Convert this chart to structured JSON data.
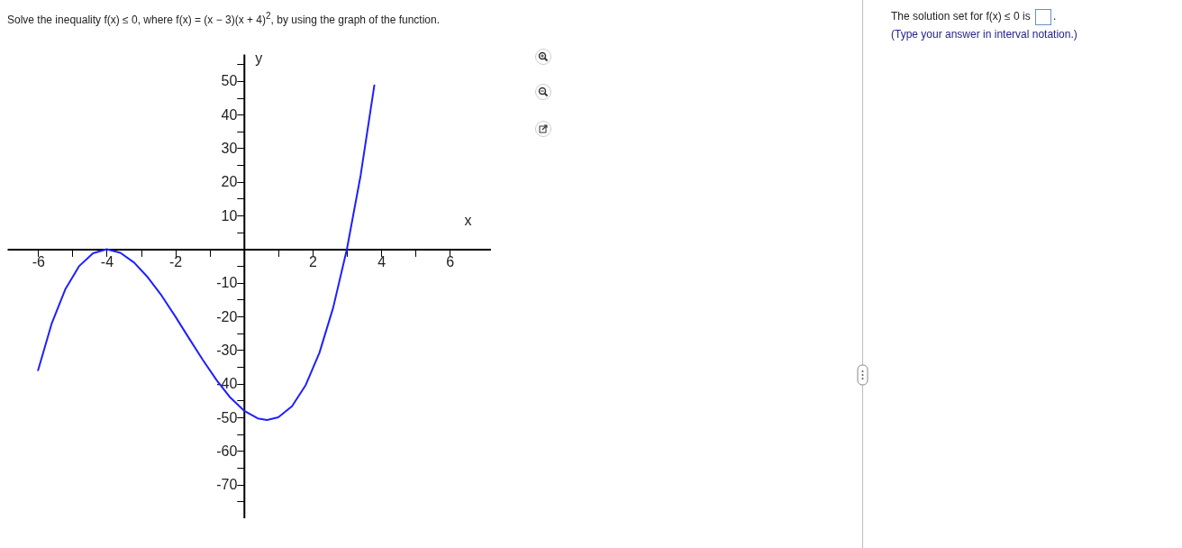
{
  "chart_data": {
    "type": "line",
    "title": "Solve the inequality f(x) ≤ 0, where f(x) = (x − 3)(x + 4)$^{2}$, by using the graph of the function.",
    "annotations": [
      "The solution set for f(x) ≤ 0 is",
      ".",
      "(Type your answer in interval notation.)"
    ],
    "xlabel": "x",
    "ylabel": "y",
    "x": [
      -6,
      -5.6,
      -5.2,
      -4.8,
      -4.4,
      -4,
      -3.6,
      -3.2,
      -2.8,
      -2.4,
      -2,
      -1.6,
      -1.2,
      -0.8,
      -0.4,
      0,
      0.4,
      0.67,
      1,
      1.4,
      1.8,
      2.2,
      2.6,
      3,
      3.4,
      3.8
    ],
    "series": [
      {
        "color": "#1f1fff",
        "values": [
          -36,
          -22,
          -11.8,
          -5,
          -1.2,
          0,
          -1.1,
          -4,
          -8.4,
          -13.8,
          -20,
          -26.5,
          -32.9,
          -38.9,
          -44.1,
          -48,
          -50.3,
          -50.8,
          -50,
          -46.7,
          -40.4,
          -30.8,
          -17.4,
          0,
          21.9,
          48.7
        ]
      }
    ],
    "xlim": [
      -6.9,
      7.2
    ],
    "ylim": [
      -80,
      58
    ],
    "xticks": [
      -6,
      {
        "value": -5,
        "label": null
      },
      -4,
      {
        "value": -3,
        "label": null
      },
      -2,
      {
        "value": -1,
        "label": null
      },
      {
        "value": 1,
        "label": null
      },
      2,
      {
        "value": 3,
        "label": null
      },
      4,
      {
        "value": 5,
        "label": null
      },
      6
    ],
    "yticks": [
      {
        "value": -75,
        "label": null
      },
      -70,
      {
        "value": -65,
        "label": null
      },
      -60,
      {
        "value": -55,
        "label": null
      },
      -50,
      {
        "value": -45,
        "label": null
      },
      -40,
      {
        "value": -35,
        "label": null
      },
      -30,
      {
        "value": -25,
        "label": null
      },
      -20,
      {
        "value": -15,
        "label": null
      },
      -10,
      {
        "value": -5,
        "label": null
      },
      {
        "value": 5,
        "label": null
      },
      10,
      {
        "value": 15,
        "label": null
      },
      20,
      {
        "value": 25,
        "label": null
      },
      30,
      {
        "value": 35,
        "label": null
      },
      40,
      {
        "value": 45,
        "label": null
      },
      50,
      {
        "value": 55,
        "label": null
      }
    ],
    "grid": false,
    "marker": "none",
    "line_style": "solid"
  }
}
